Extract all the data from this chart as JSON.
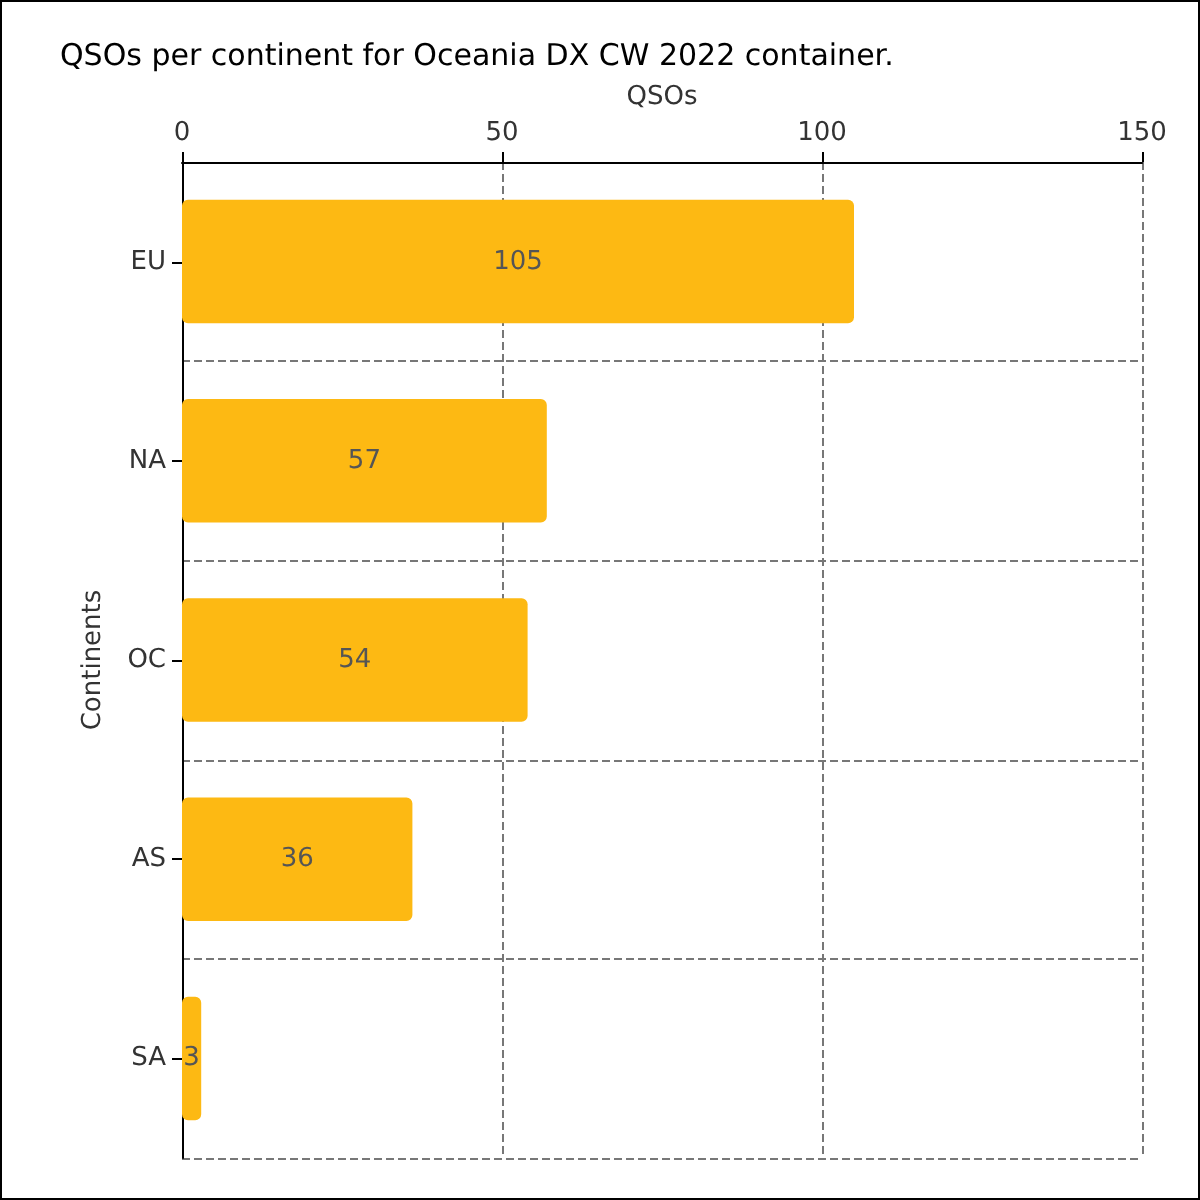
{
  "chart_data": {
    "type": "bar",
    "orientation": "horizontal",
    "title": "QSOs per continent for Oceania DX CW 2022 container.",
    "xlabel": "QSOs",
    "ylabel": "Continents",
    "categories": [
      "EU",
      "NA",
      "OC",
      "AS",
      "SA"
    ],
    "values": [
      105,
      57,
      54,
      36,
      3
    ],
    "color": "#fdb913",
    "data_labels": true,
    "xlim": [
      0,
      150
    ],
    "xticks": [
      0,
      50,
      100,
      150
    ],
    "grid": true
  }
}
